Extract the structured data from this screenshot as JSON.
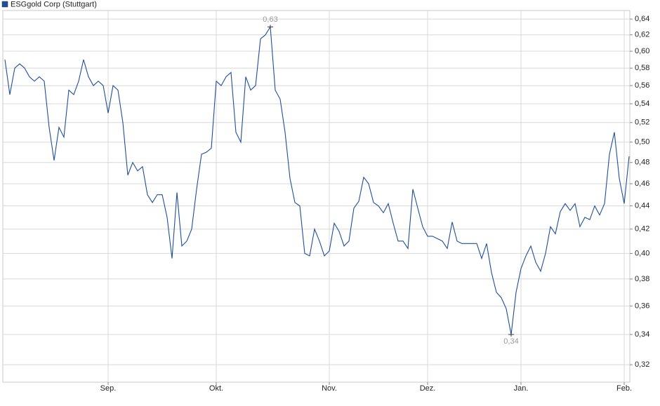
{
  "chart_data": {
    "type": "line",
    "categories": [
      null,
      null,
      null,
      null,
      null,
      null,
      null,
      null,
      null,
      null,
      null,
      null,
      null,
      null,
      null,
      null,
      null,
      null,
      null,
      null,
      null,
      "Sep.",
      null,
      null,
      null,
      null,
      null,
      null,
      null,
      null,
      null,
      null,
      null,
      null,
      null,
      null,
      null,
      null,
      null,
      null,
      null,
      null,
      null,
      "Okt.",
      null,
      null,
      null,
      null,
      null,
      null,
      null,
      null,
      null,
      null,
      null,
      null,
      null,
      null,
      null,
      null,
      null,
      null,
      null,
      null,
      null,
      null,
      "Nov.",
      null,
      null,
      null,
      null,
      null,
      null,
      null,
      null,
      null,
      null,
      null,
      null,
      null,
      null,
      null,
      null,
      null,
      null,
      null,
      "Dez.",
      null,
      null,
      null,
      null,
      null,
      null,
      null,
      null,
      null,
      null,
      null,
      null,
      null,
      null,
      null,
      null,
      null,
      null,
      "Jan.",
      null,
      null,
      null,
      null,
      null,
      null,
      null,
      null,
      null,
      null,
      null,
      null,
      null,
      null,
      null,
      null,
      null,
      null,
      null,
      null,
      "Feb.",
      null
    ],
    "series": [
      {
        "name": "ESGgold Corp (Stuttgart)",
        "color": "#1f4e9a",
        "values": [
          0.59,
          0.55,
          0.58,
          0.585,
          0.58,
          0.57,
          0.565,
          0.57,
          0.565,
          0.515,
          0.482,
          0.515,
          0.505,
          0.555,
          0.55,
          0.565,
          0.59,
          0.57,
          0.56,
          0.565,
          0.56,
          0.53,
          0.56,
          0.555,
          0.52,
          0.468,
          0.48,
          0.472,
          0.476,
          0.45,
          0.443,
          0.45,
          0.45,
          0.43,
          0.396,
          0.452,
          0.406,
          0.41,
          0.42,
          0.455,
          0.488,
          0.49,
          0.494,
          0.565,
          0.56,
          0.57,
          0.575,
          0.51,
          0.5,
          0.57,
          0.555,
          0.56,
          0.615,
          0.62,
          0.63,
          0.555,
          0.545,
          0.51,
          0.465,
          0.443,
          0.44,
          0.4,
          0.398,
          0.42,
          0.41,
          0.398,
          0.402,
          0.425,
          0.418,
          0.406,
          0.41,
          0.438,
          0.444,
          0.466,
          0.46,
          0.443,
          0.44,
          0.434,
          0.442,
          0.425,
          0.41,
          0.41,
          0.404,
          0.455,
          0.438,
          0.422,
          0.414,
          0.414,
          0.412,
          0.41,
          0.404,
          0.426,
          0.41,
          0.408,
          0.408,
          0.408,
          0.408,
          0.396,
          0.408,
          0.385,
          0.37,
          0.366,
          0.358,
          0.34,
          0.37,
          0.388,
          0.398,
          0.406,
          0.393,
          0.386,
          0.4,
          0.422,
          0.416,
          0.435,
          0.442,
          0.436,
          0.442,
          0.422,
          0.43,
          0.428,
          0.44,
          0.432,
          0.442,
          0.488,
          0.51,
          0.465,
          0.442,
          0.486
        ]
      }
    ],
    "max_label": "0,63",
    "min_label": "0,34",
    "ylim": [
      0.309,
      0.651
    ],
    "log_scale": true,
    "grid": true,
    "yticks": [
      {
        "value": 0.32,
        "label": "0,32"
      },
      {
        "value": 0.34,
        "label": "0,34"
      },
      {
        "value": 0.36,
        "label": "0,36"
      },
      {
        "value": 0.38,
        "label": "0,38"
      },
      {
        "value": 0.4,
        "label": "0,40"
      },
      {
        "value": 0.42,
        "label": "0,42"
      },
      {
        "value": 0.44,
        "label": "0,44"
      },
      {
        "value": 0.46,
        "label": "0,46"
      },
      {
        "value": 0.48,
        "label": "0,48"
      },
      {
        "value": 0.5,
        "label": "0,50"
      },
      {
        "value": 0.52,
        "label": "0,52"
      },
      {
        "value": 0.54,
        "label": "0,54"
      },
      {
        "value": 0.56,
        "label": "0,56"
      },
      {
        "value": 0.58,
        "label": "0,58"
      },
      {
        "value": 0.6,
        "label": "0,60"
      },
      {
        "value": 0.62,
        "label": "0,62"
      },
      {
        "value": 0.64,
        "label": "0,64"
      }
    ]
  }
}
